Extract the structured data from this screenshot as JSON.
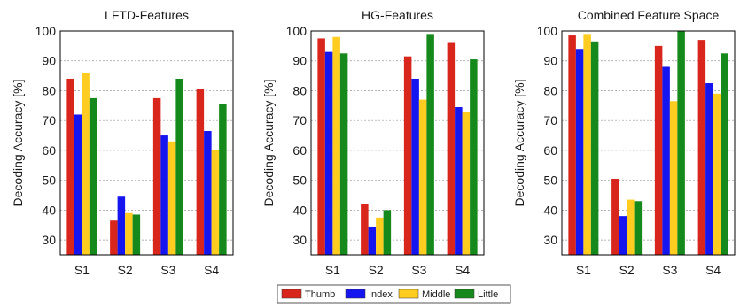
{
  "legend": {
    "entries": [
      "Thumb",
      "Index",
      "Middle",
      "Little"
    ],
    "colors": [
      "#d9261c",
      "#1515f0",
      "#ffcc1f",
      "#16891c"
    ]
  },
  "chart_data": [
    {
      "type": "bar",
      "title": "LFTD-Features",
      "ylabel": "Decoding Accuracy [%]",
      "xlabel": "",
      "categories": [
        "S1",
        "S2",
        "S3",
        "S4"
      ],
      "ylim": [
        25,
        100
      ],
      "yticks": [
        30,
        40,
        50,
        60,
        70,
        80,
        90,
        100
      ],
      "grid": true,
      "series": [
        {
          "name": "Thumb",
          "values": [
            84,
            36.5,
            77.5,
            80.5
          ]
        },
        {
          "name": "Index",
          "values": [
            72,
            44.5,
            65,
            66.5
          ]
        },
        {
          "name": "Middle",
          "values": [
            86,
            39,
            63,
            60
          ]
        },
        {
          "name": "Little",
          "values": [
            77.5,
            38.5,
            84,
            75.5
          ]
        }
      ]
    },
    {
      "type": "bar",
      "title": "HG-Features",
      "ylabel": "Decoding Accuracy [%]",
      "xlabel": "",
      "categories": [
        "S1",
        "S2",
        "S3",
        "S4"
      ],
      "ylim": [
        25,
        100
      ],
      "yticks": [
        30,
        40,
        50,
        60,
        70,
        80,
        90,
        100
      ],
      "grid": true,
      "series": [
        {
          "name": "Thumb",
          "values": [
            97.5,
            42,
            91.5,
            96
          ]
        },
        {
          "name": "Index",
          "values": [
            93,
            34.5,
            84,
            74.5
          ]
        },
        {
          "name": "Middle",
          "values": [
            98,
            37.5,
            77,
            73
          ]
        },
        {
          "name": "Little",
          "values": [
            92.5,
            40,
            99,
            90.5
          ]
        }
      ]
    },
    {
      "type": "bar",
      "title": "Combined Feature Space",
      "ylabel": "Decoding Accuracy [%]",
      "xlabel": "",
      "categories": [
        "S1",
        "S2",
        "S3",
        "S4"
      ],
      "ylim": [
        25,
        100
      ],
      "yticks": [
        30,
        40,
        50,
        60,
        70,
        80,
        90,
        100
      ],
      "grid": true,
      "series": [
        {
          "name": "Thumb",
          "values": [
            98.5,
            50.5,
            95,
            97
          ]
        },
        {
          "name": "Index",
          "values": [
            94,
            38,
            88,
            82.5
          ]
        },
        {
          "name": "Middle",
          "values": [
            99,
            43.5,
            76.5,
            79
          ]
        },
        {
          "name": "Little",
          "values": [
            96.5,
            43,
            100,
            92.5
          ]
        }
      ]
    }
  ]
}
